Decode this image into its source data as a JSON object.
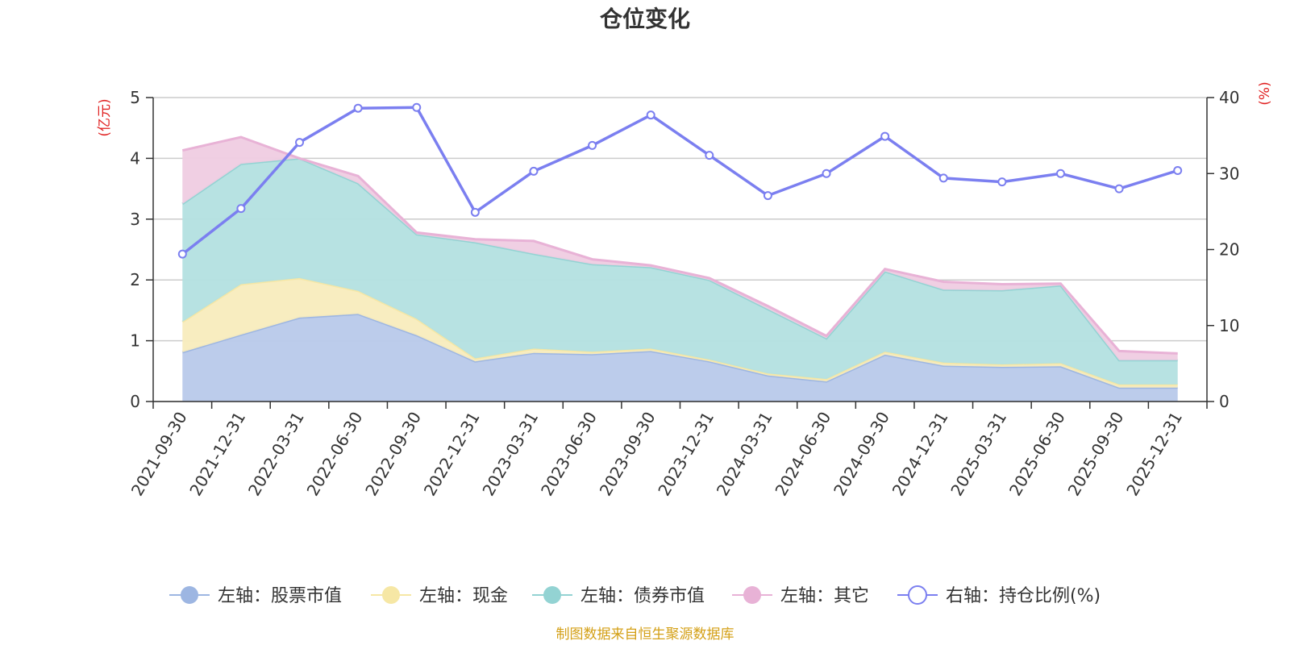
{
  "chart_data": {
    "type": "area",
    "title": "仓位变化",
    "source": "制图数据来自恒生聚源数据库",
    "left_unit": "(亿元)",
    "right_unit": "(%)",
    "categories": [
      "2021-09-30",
      "2021-12-31",
      "2022-03-31",
      "2022-06-30",
      "2022-09-30",
      "2022-12-31",
      "2023-03-31",
      "2023-06-30",
      "2023-09-30",
      "2023-12-31",
      "2024-03-31",
      "2024-06-30",
      "2024-09-30",
      "2024-12-31",
      "2025-03-31",
      "2025-06-30",
      "2025-09-30",
      "2025-12-31"
    ],
    "left_axis": {
      "min": 0,
      "max": 5,
      "ticks": [
        "0",
        "1",
        "2",
        "3",
        "4",
        "5"
      ]
    },
    "right_axis": {
      "min": 0,
      "max": 40,
      "ticks": [
        "0",
        "10",
        "20",
        "30",
        "40"
      ]
    },
    "stacked_series": [
      {
        "name": "左轴：股票市值",
        "color": "#9db6e2",
        "fill": "#b8c9ea",
        "values": [
          0.81,
          1.1,
          1.38,
          1.44,
          1.09,
          0.66,
          0.8,
          0.78,
          0.83,
          0.66,
          0.43,
          0.33,
          0.77,
          0.59,
          0.57,
          0.58,
          0.23,
          0.23
        ]
      },
      {
        "name": "左轴：现金",
        "color": "#f6e7a5",
        "fill": "#f8ecbd",
        "values": [
          0.5,
          0.83,
          0.65,
          0.38,
          0.27,
          0.05,
          0.07,
          0.04,
          0.04,
          0.03,
          0.03,
          0.04,
          0.05,
          0.05,
          0.04,
          0.05,
          0.05,
          0.05
        ]
      },
      {
        "name": "左轴：债券市值",
        "color": "#93d3d3",
        "fill": "#b3e0e0",
        "values": [
          1.94,
          1.98,
          1.97,
          1.77,
          1.39,
          1.91,
          1.56,
          1.44,
          1.34,
          1.31,
          1.06,
          0.67,
          1.32,
          1.2,
          1.22,
          1.28,
          0.4,
          0.4
        ]
      },
      {
        "name": "左轴：其它",
        "color": "#e8b2d6",
        "fill": "#efcce2",
        "values": [
          0.88,
          0.44,
          0.0,
          0.12,
          0.03,
          0.05,
          0.21,
          0.08,
          0.03,
          0.03,
          0.05,
          0.04,
          0.04,
          0.13,
          0.1,
          0.03,
          0.15,
          0.11
        ]
      }
    ],
    "line_series": {
      "name": "右轴：持仓比例(%)",
      "color": "#7b7ff0",
      "values": [
        19.4,
        25.4,
        34.1,
        38.6,
        38.7,
        24.9,
        30.3,
        33.7,
        37.7,
        32.4,
        27.1,
        30.0,
        34.9,
        29.4,
        28.9,
        30.0,
        28.0,
        30.4
      ]
    }
  }
}
